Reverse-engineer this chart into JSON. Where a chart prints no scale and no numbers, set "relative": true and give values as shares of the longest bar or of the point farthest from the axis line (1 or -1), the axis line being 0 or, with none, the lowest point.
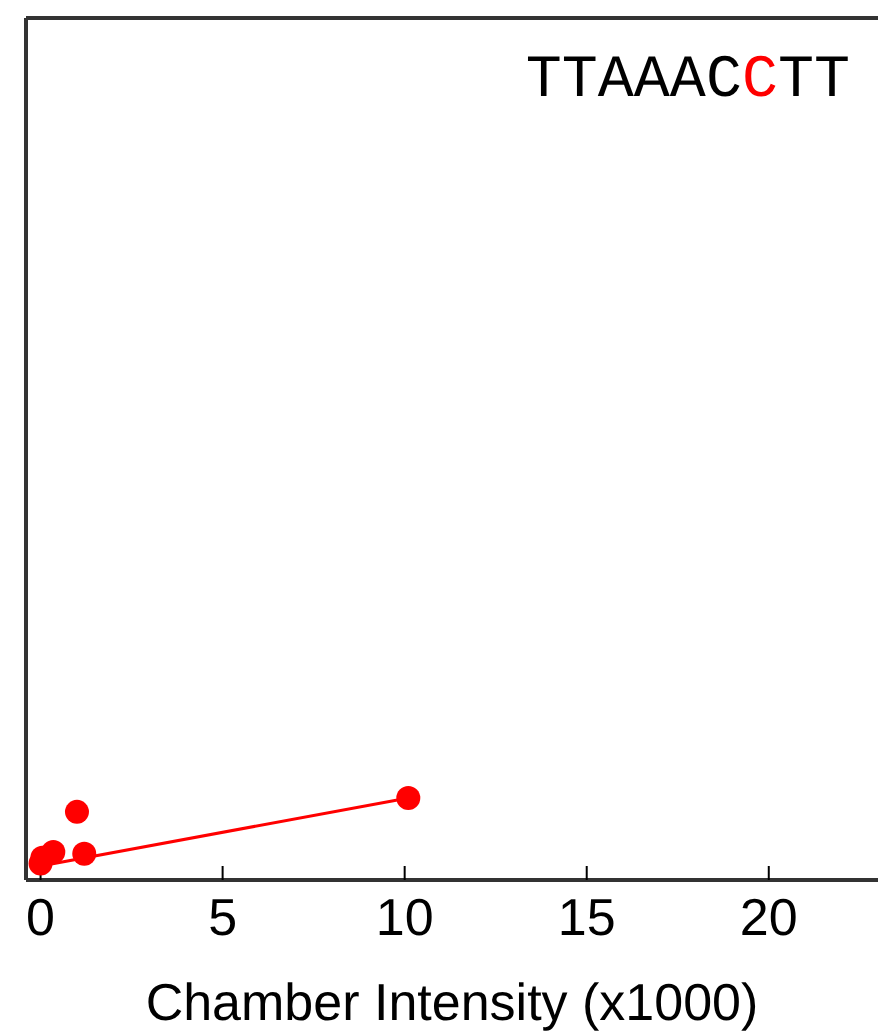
{
  "chart_data": {
    "type": "scatter",
    "title": "TTAAACCTT",
    "xlabel": "Chamber Intensity (x1000)",
    "relative": true,
    "xlim": [
      -0.4,
      23
    ],
    "xticks": [
      0,
      5,
      10,
      15,
      20
    ],
    "tick_labels": "x",
    "marker": "circle",
    "series": [
      {
        "color": "#ff0000",
        "x": [
          0,
          0.05,
          0.35,
          1.0,
          1.2,
          10.1
        ],
        "values": [
          0.2,
          0.27,
          0.34,
          0.83,
          0.32,
          1.0
        ]
      },
      {
        "type": "line",
        "color": "#ff0000",
        "marker": "none",
        "x": [
          0,
          10.1
        ],
        "values": [
          0.17,
          1.0
        ]
      }
    ]
  }
}
